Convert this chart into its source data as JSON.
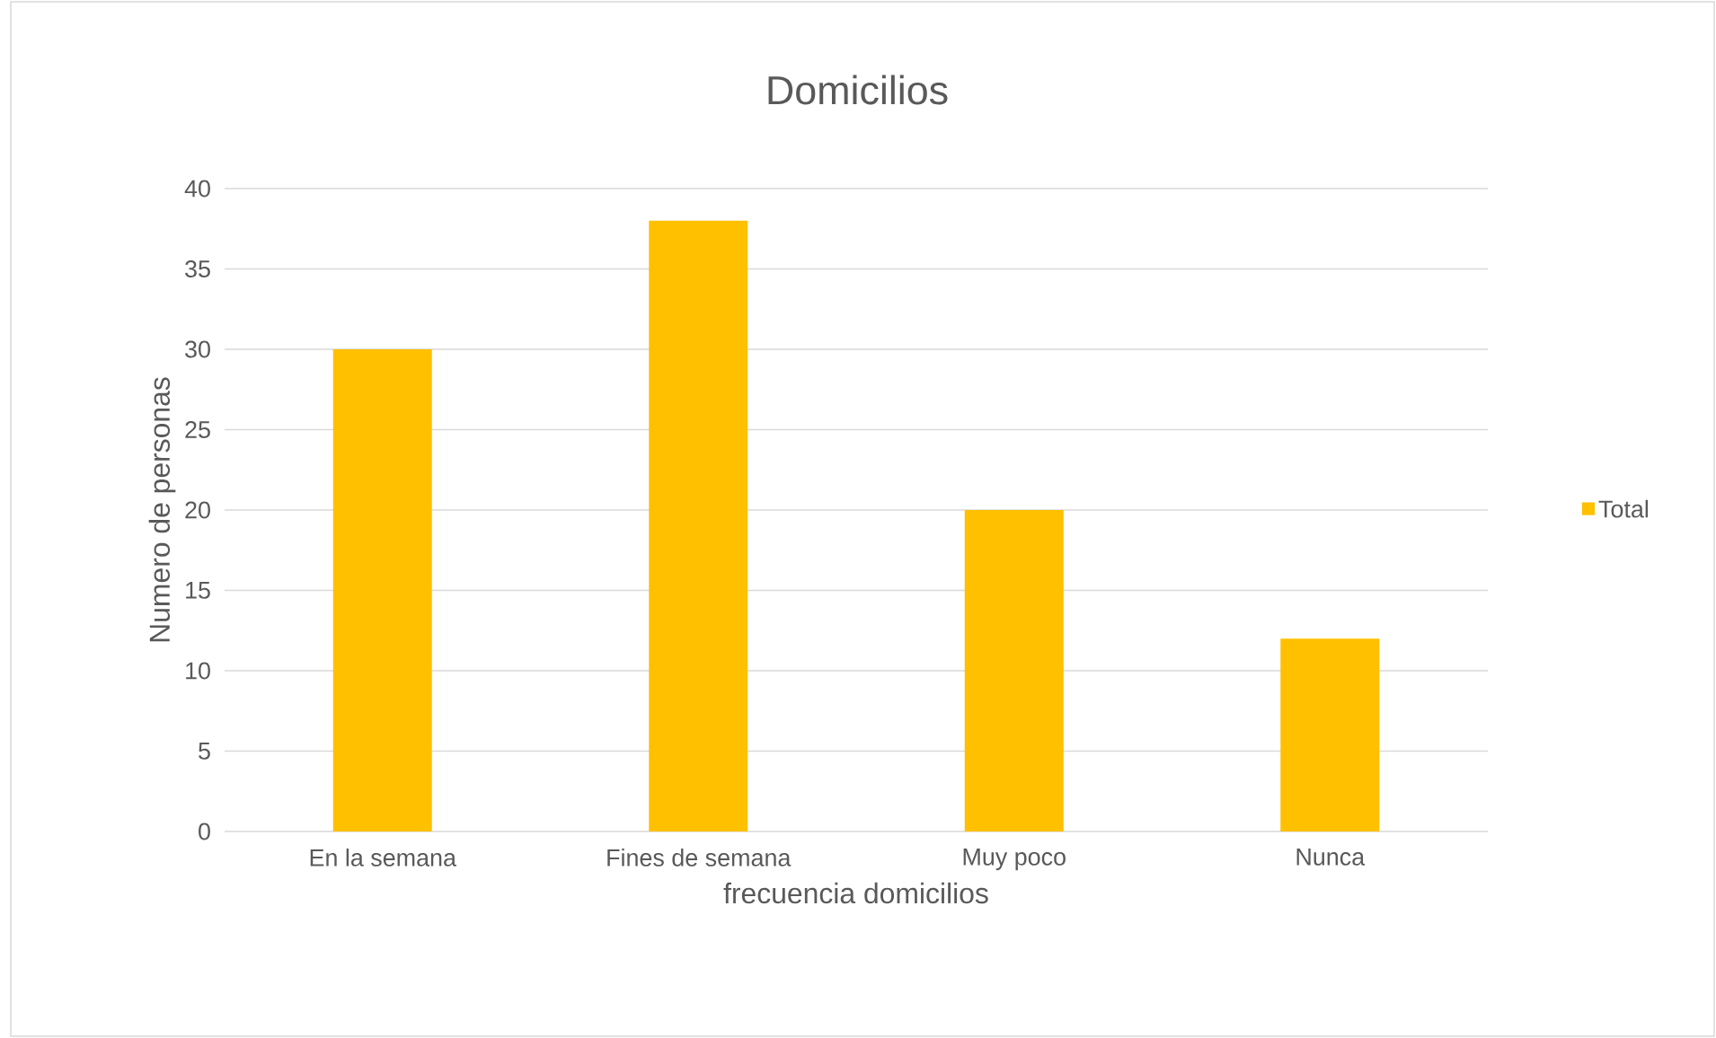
{
  "chart_data": {
    "type": "bar",
    "title": "Domicilios",
    "xlabel": "frecuencia domicilios",
    "ylabel": "Numero de personas",
    "categories": [
      "En la semana",
      "Fines de semana",
      "Muy poco",
      "Nunca"
    ],
    "series": [
      {
        "name": "Total",
        "color": "#ffc000",
        "values": [
          30,
          38,
          20,
          12
        ]
      }
    ],
    "ylim": [
      0,
      40
    ],
    "yticks": [
      0,
      5,
      10,
      15,
      20,
      25,
      30,
      35,
      40
    ],
    "grid": "y",
    "legend": "right"
  }
}
